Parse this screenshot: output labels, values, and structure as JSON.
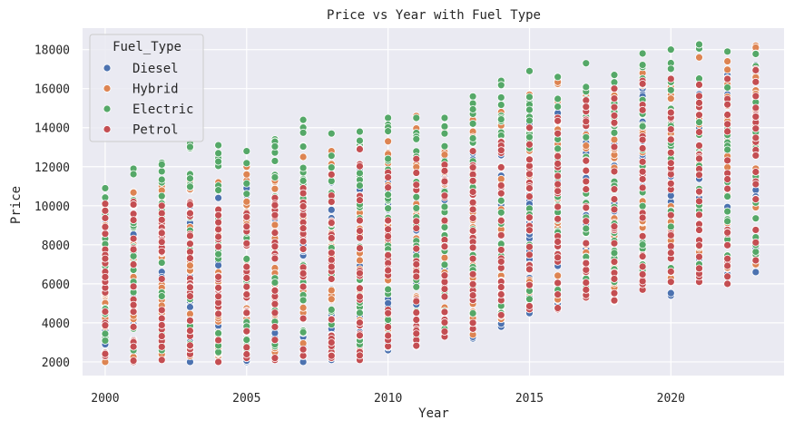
{
  "chart_data": {
    "type": "scatter",
    "title": "Price vs Year with Fuel Type",
    "xlabel": "Year",
    "ylabel": "Price",
    "xlim": [
      1999.2,
      2024.0
    ],
    "ylim": [
      1300,
      19100
    ],
    "xticks": [
      2000,
      2005,
      2010,
      2015,
      2020
    ],
    "yticks": [
      2000,
      4000,
      6000,
      8000,
      10000,
      12000,
      14000,
      16000,
      18000
    ],
    "grid": true,
    "legend": {
      "title": "Fuel_Type",
      "placement": "top-left"
    },
    "x_values": [
      2000,
      2001,
      2002,
      2003,
      2004,
      2005,
      2006,
      2007,
      2008,
      2009,
      2010,
      2011,
      2012,
      2013,
      2014,
      2015,
      2016,
      2017,
      2018,
      2019,
      2020,
      2021,
      2022,
      2023
    ],
    "series": [
      {
        "name": "Diesel",
        "color": "#4c72b0",
        "y_ranges": [
          [
            2100,
            9300
          ],
          [
            2500,
            10000
          ],
          [
            2300,
            10500
          ],
          [
            2000,
            10800
          ],
          [
            2400,
            10400
          ],
          [
            2000,
            10900
          ],
          [
            2300,
            11200
          ],
          [
            2000,
            11400
          ],
          [
            2100,
            11200
          ],
          [
            2500,
            11800
          ],
          [
            2600,
            12200
          ],
          [
            3000,
            12500
          ],
          [
            3400,
            12800
          ],
          [
            3200,
            13200
          ],
          [
            3800,
            13600
          ],
          [
            4500,
            14200
          ],
          [
            5000,
            14800
          ],
          [
            5300,
            15000
          ],
          [
            5500,
            15500
          ],
          [
            6000,
            16000
          ],
          [
            5400,
            15800
          ],
          [
            6200,
            16500
          ],
          [
            6500,
            16800
          ],
          [
            6600,
            17200
          ]
        ]
      },
      {
        "name": "Hybrid",
        "color": "#dd8452",
        "y_ranges": [
          [
            2000,
            10000
          ],
          [
            2200,
            10700
          ],
          [
            2100,
            11000
          ],
          [
            2300,
            11500
          ],
          [
            2300,
            11200
          ],
          [
            2200,
            12000
          ],
          [
            2500,
            12300
          ],
          [
            2400,
            12500
          ],
          [
            2300,
            12800
          ],
          [
            2600,
            13200
          ],
          [
            2800,
            13300
          ],
          [
            2900,
            14600
          ],
          [
            3500,
            14000
          ],
          [
            3400,
            14400
          ],
          [
            4200,
            14800
          ],
          [
            4900,
            15700
          ],
          [
            5200,
            16400
          ],
          [
            5500,
            15600
          ],
          [
            5800,
            16000
          ],
          [
            6200,
            16800
          ],
          [
            6100,
            16300
          ],
          [
            6500,
            17600
          ],
          [
            6800,
            17400
          ],
          [
            7000,
            18200
          ]
        ]
      },
      {
        "name": "Electric",
        "color": "#55a868",
        "y_ranges": [
          [
            2300,
            10900
          ],
          [
            2600,
            11900
          ],
          [
            2600,
            12200
          ],
          [
            2400,
            13200
          ],
          [
            2500,
            13100
          ],
          [
            2400,
            12800
          ],
          [
            2800,
            13400
          ],
          [
            2600,
            14400
          ],
          [
            2700,
            13700
          ],
          [
            2900,
            13800
          ],
          [
            3400,
            14500
          ],
          [
            3300,
            14500
          ],
          [
            3700,
            14500
          ],
          [
            3700,
            15600
          ],
          [
            4500,
            16400
          ],
          [
            5200,
            16900
          ],
          [
            5500,
            16600
          ],
          [
            5800,
            17300
          ],
          [
            6100,
            16700
          ],
          [
            6500,
            17800
          ],
          [
            6600,
            18000
          ],
          [
            7000,
            18300
          ],
          [
            7300,
            17900
          ],
          [
            7500,
            17800
          ]
        ]
      },
      {
        "name": "Petrol",
        "color": "#c44e52",
        "y_ranges": [
          [
            2300,
            10100
          ],
          [
            2000,
            10200
          ],
          [
            2100,
            10000
          ],
          [
            2400,
            10200
          ],
          [
            2000,
            9800
          ],
          [
            2200,
            9600
          ],
          [
            2100,
            10400
          ],
          [
            2300,
            10900
          ],
          [
            2200,
            11600
          ],
          [
            2100,
            12900
          ],
          [
            2800,
            11700
          ],
          [
            2800,
            12400
          ],
          [
            3300,
            12100
          ],
          [
            3700,
            12800
          ],
          [
            4400,
            13300
          ],
          [
            4700,
            14000
          ],
          [
            4700,
            14500
          ],
          [
            5300,
            15400
          ],
          [
            5100,
            16000
          ],
          [
            5700,
            16400
          ],
          [
            6100,
            16500
          ],
          [
            6100,
            16200
          ],
          [
            6000,
            16500
          ],
          [
            7200,
            17000
          ]
        ]
      }
    ]
  }
}
